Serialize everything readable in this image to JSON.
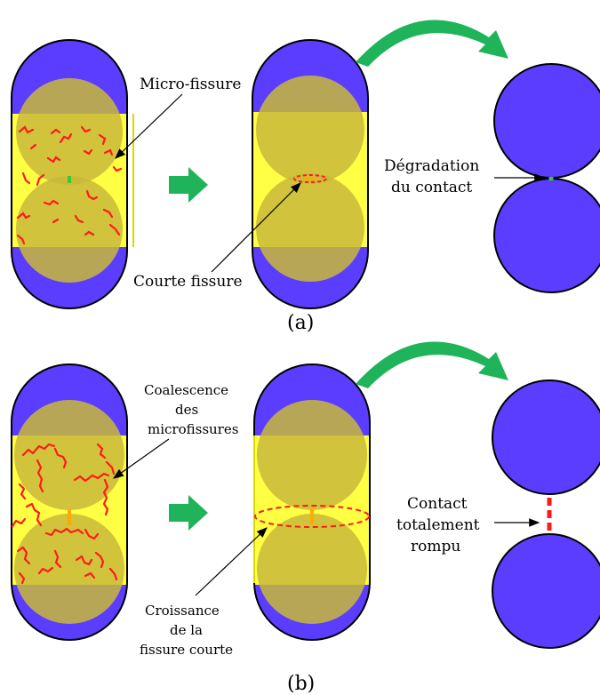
{
  "panel_a": {
    "micro_crack_label": "Micro-fissure",
    "short_crack_label": "Courte fissure",
    "degradation_label_line1": "Dégradation",
    "degradation_label_line2": "du contact",
    "panel_label": "(a)"
  },
  "panel_b": {
    "coalescence_line1": "Coalescence",
    "coalescence_line2": "des",
    "coalescence_line3": "microfissures",
    "growth_line1": "Croissance",
    "growth_line2": "de la",
    "growth_line3": "fissure courte",
    "broken_line1": "Contact",
    "broken_line2": "totalement",
    "broken_line3": "rompu",
    "panel_label": "(b)"
  },
  "colors": {
    "particle": "#5a3dff",
    "overlap_zone": "#c9b93a",
    "matrix": "#ffff44",
    "crack": "#ff1a1a",
    "arrow": "#1fb35a",
    "contact_ok": "#33cc33",
    "contact_damaged": "#ffaa00"
  }
}
